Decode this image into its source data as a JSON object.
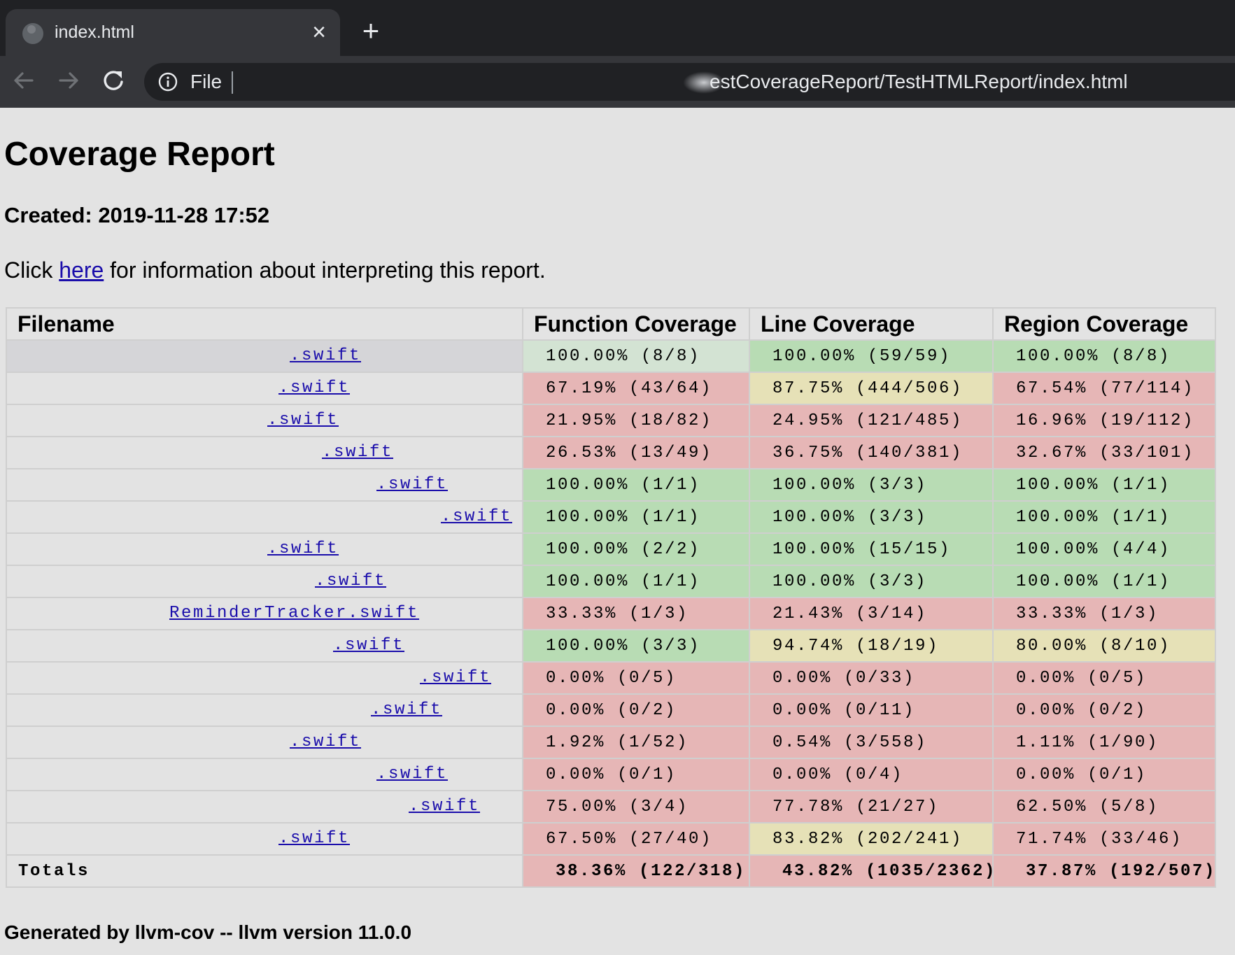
{
  "browser": {
    "tab_title": "index.html",
    "tab_close": "×",
    "new_tab": "+",
    "site_label": "File",
    "url": "estCoverageReport/TestHTMLReport/index.html",
    "icons": [
      "globe-icon",
      "close-icon",
      "plus-icon",
      "back-arrow-icon",
      "forward-arrow-icon",
      "reload-icon",
      "info-icon"
    ]
  },
  "page": {
    "title": "Coverage Report",
    "created": "Created: 2019-11-28 17:52",
    "info_prefix": "Click ",
    "info_link": "here",
    "info_suffix": " for information about interpreting this report.",
    "footer": "Generated by llvm-cov -- llvm version 11.0.0"
  },
  "table": {
    "headers": [
      "Filename",
      "Function Coverage",
      "Line Coverage",
      "Region Coverage"
    ],
    "colors": {
      "green": "#b8dcb4",
      "red": "#e6b6b6",
      "yellow": "#e6e1b7"
    },
    "rows": [
      {
        "file": ".swift",
        "function": "100.00% (8/8)",
        "line": "100.00% (59/59)",
        "region": "100.00% (8/8)",
        "status": [
          "pale",
          "green",
          "green"
        ]
      },
      {
        "file": ".swift",
        "function": "67.19% (43/64)",
        "line": "87.75% (444/506)",
        "region": "67.54% (77/114)",
        "status": [
          "red",
          "yellow",
          "red"
        ]
      },
      {
        "file": ".swift",
        "function": "21.95% (18/82)",
        "line": "24.95% (121/485)",
        "region": "16.96% (19/112)",
        "status": [
          "red",
          "red",
          "red"
        ]
      },
      {
        "file": ".swift",
        "function": "26.53% (13/49)",
        "line": "36.75% (140/381)",
        "region": "32.67% (33/101)",
        "status": [
          "red",
          "red",
          "red"
        ]
      },
      {
        "file": ".swift",
        "function": "100.00% (1/1)",
        "line": "100.00% (3/3)",
        "region": "100.00% (1/1)",
        "status": [
          "green",
          "green",
          "green"
        ]
      },
      {
        "file": ".swift",
        "function": "100.00% (1/1)",
        "line": "100.00% (3/3)",
        "region": "100.00% (1/1)",
        "status": [
          "green",
          "green",
          "green"
        ]
      },
      {
        "file": ".swift",
        "function": "100.00% (2/2)",
        "line": "100.00% (15/15)",
        "region": "100.00% (4/4)",
        "status": [
          "green",
          "green",
          "green"
        ]
      },
      {
        "file": ".swift",
        "function": "100.00% (1/1)",
        "line": "100.00% (3/3)",
        "region": "100.00% (1/1)",
        "status": [
          "green",
          "green",
          "green"
        ]
      },
      {
        "file": "ReminderTracker.swift",
        "function": "33.33% (1/3)",
        "line": "21.43% (3/14)",
        "region": "33.33% (1/3)",
        "status": [
          "red",
          "red",
          "red"
        ]
      },
      {
        "file": ".swift",
        "function": "100.00% (3/3)",
        "line": "94.74% (18/19)",
        "region": "80.00% (8/10)",
        "status": [
          "green",
          "yellow",
          "yellow"
        ]
      },
      {
        "file": ".swift",
        "function": "0.00% (0/5)",
        "line": "0.00% (0/33)",
        "region": "0.00% (0/5)",
        "status": [
          "red",
          "red",
          "red"
        ]
      },
      {
        "file": ".swift",
        "function": "0.00% (0/2)",
        "line": "0.00% (0/11)",
        "region": "0.00% (0/2)",
        "status": [
          "red",
          "red",
          "red"
        ]
      },
      {
        "file": ".swift",
        "function": "1.92% (1/52)",
        "line": "0.54% (3/558)",
        "region": "1.11% (1/90)",
        "status": [
          "red",
          "red",
          "red"
        ]
      },
      {
        "file": ".swift",
        "function": "0.00% (0/1)",
        "line": "0.00% (0/4)",
        "region": "0.00% (0/1)",
        "status": [
          "red",
          "red",
          "red"
        ]
      },
      {
        "file": ".swift",
        "function": "75.00% (3/4)",
        "line": "77.78% (21/27)",
        "region": "62.50% (5/8)",
        "status": [
          "red",
          "red",
          "red"
        ]
      },
      {
        "file": ".swift",
        "function": "67.50% (27/40)",
        "line": "83.82% (202/241)",
        "region": "71.74% (33/46)",
        "status": [
          "red",
          "yellow",
          "red"
        ]
      }
    ],
    "totals": {
      "label": "Totals",
      "function": "38.36% (122/318)",
      "line": "43.82% (1035/2362)",
      "region": "37.87% (192/507)"
    }
  }
}
